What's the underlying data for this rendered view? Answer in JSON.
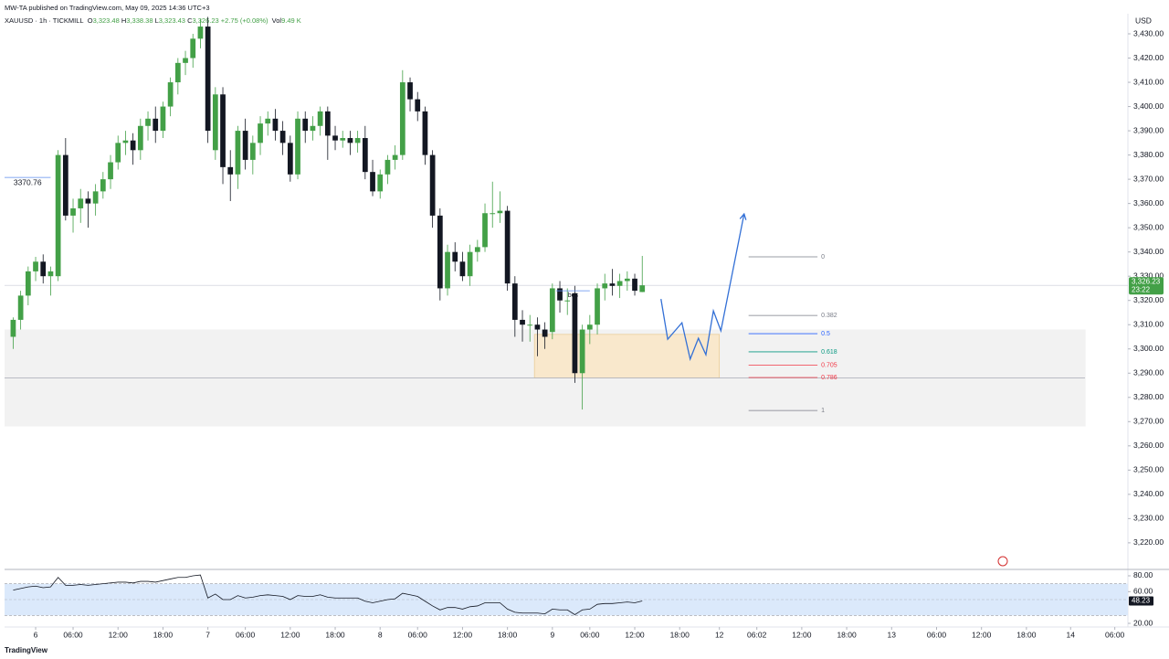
{
  "header": {
    "publisher": "MW-TA published on TradingView.com, May 09, 2025 14:36 UTC+3",
    "symbol": "XAUUSD · 1h · TICKMILL",
    "legend": [
      {
        "key": "O",
        "value": "3,323.48"
      },
      {
        "key": "H",
        "value": "3,338.38"
      },
      {
        "key": "L",
        "value": "3,323.43"
      },
      {
        "key": "C",
        "value": "3,326.23"
      }
    ],
    "change": "+2.75 (+0.08%)",
    "volume": {
      "key": "Vol",
      "value": "9.49 K"
    }
  },
  "footer": {
    "brand": "TradingView"
  },
  "chart_data": {
    "type": "candlestick",
    "currency": "USD",
    "up_color": "#43a047",
    "down_color": "#131722",
    "x": [
      -3,
      -2,
      -1,
      0,
      1,
      2,
      3,
      4,
      5,
      6,
      7,
      8,
      9,
      10,
      11,
      12,
      13,
      14,
      15,
      16,
      17,
      18,
      19,
      20,
      21,
      22,
      23,
      24,
      25,
      26,
      27,
      28,
      29,
      30,
      31,
      32,
      33,
      34,
      35,
      36,
      37,
      38,
      39,
      40,
      41,
      42,
      43,
      44,
      45,
      46,
      47,
      48,
      49,
      50,
      51,
      52,
      53,
      54,
      55,
      56,
      57,
      58,
      59,
      60,
      61,
      62,
      63,
      64,
      65,
      66,
      67,
      68,
      69,
      70,
      71,
      72,
      73,
      74,
      75,
      76,
      77,
      78,
      79,
      80,
      81
    ],
    "open": [
      3305,
      3312,
      3322,
      3332,
      3336,
      3330,
      3330,
      3380,
      3355,
      3358,
      3362,
      3360,
      3365,
      3370,
      3377,
      3385,
      3386,
      3382,
      3392,
      3395,
      3390,
      3400,
      3410,
      3418,
      3420,
      3428,
      3433,
      3382,
      3405,
      3375,
      3372,
      3390,
      3378,
      3385,
      3393,
      3395,
      3390,
      3385,
      3372,
      3395,
      3390,
      3392,
      3398,
      3388,
      3386,
      3387,
      3385,
      3387,
      3373,
      3365,
      3372,
      3378,
      3380,
      3410,
      3403,
      3398,
      3380,
      3355,
      3325,
      3340,
      3336,
      3330,
      3340,
      3342,
      3356,
      3356,
      3357,
      3327,
      3312,
      3310,
      3310,
      3308,
      3307,
      3325,
      3320,
      3323,
      3290,
      3308,
      3310,
      3325,
      3327,
      3326,
      3328,
      3329,
      3323.48
    ],
    "high": [
      3313,
      3324,
      3334,
      3338,
      3339,
      3334,
      3382,
      3387,
      3362,
      3366,
      3365,
      3368,
      3373,
      3380,
      3388,
      3390,
      3389,
      3395,
      3398,
      3400,
      3402,
      3412,
      3420,
      3423,
      3430,
      3436,
      3437,
      3408,
      3408,
      3382,
      3392,
      3395,
      3388,
      3396,
      3398,
      3399,
      3394,
      3388,
      3398,
      3398,
      3396,
      3400,
      3400,
      3392,
      3390,
      3390,
      3390,
      3392,
      3378,
      3374,
      3380,
      3384,
      3415,
      3412,
      3406,
      3400,
      3382,
      3358,
      3343,
      3344,
      3340,
      3343,
      3345,
      3360,
      3369,
      3365,
      3359,
      3330,
      3316,
      3314,
      3313,
      3311,
      3327,
      3328,
      3325,
      3326,
      3310,
      3314,
      3327,
      3331,
      3333,
      3331,
      3332,
      3331,
      3338.38
    ],
    "low": [
      3300,
      3308,
      3318,
      3328,
      3327,
      3322,
      3328,
      3353,
      3348,
      3352,
      3350,
      3355,
      3362,
      3366,
      3374,
      3380,
      3376,
      3378,
      3386,
      3385,
      3387,
      3396,
      3405,
      3413,
      3416,
      3424,
      3385,
      3378,
      3368,
      3361,
      3366,
      3374,
      3372,
      3380,
      3388,
      3386,
      3380,
      3369,
      3370,
      3385,
      3386,
      3388,
      3378,
      3382,
      3383,
      3380,
      3381,
      3370,
      3363,
      3362,
      3368,
      3374,
      3378,
      3398,
      3394,
      3376,
      3350,
      3320,
      3322,
      3332,
      3328,
      3326,
      3336,
      3340,
      3350,
      3352,
      3324,
      3305,
      3303,
      3303,
      3297,
      3300,
      3304,
      3315,
      3314,
      3286,
      3275,
      3302,
      3306,
      3320,
      3322,
      3321,
      3324,
      3322,
      3323.43
    ],
    "close": [
      3312,
      3322,
      3332,
      3336,
      3330,
      3332,
      3380,
      3355,
      3358,
      3362,
      3360,
      3365,
      3370,
      3377,
      3385,
      3386,
      3382,
      3392,
      3395,
      3390,
      3400,
      3410,
      3418,
      3420,
      3428,
      3433,
      3390,
      3405,
      3375,
      3372,
      3390,
      3378,
      3385,
      3393,
      3395,
      3390,
      3385,
      3372,
      3395,
      3390,
      3392,
      3398,
      3388,
      3386,
      3387,
      3385,
      3387,
      3373,
      3365,
      3372,
      3378,
      3380,
      3410,
      3403,
      3398,
      3380,
      3355,
      3325,
      3340,
      3336,
      3330,
      3340,
      3342,
      3356,
      3356,
      3357,
      3327,
      3312,
      3310,
      3310,
      3308,
      3305,
      3325,
      3320,
      3320,
      3290,
      3308,
      3310,
      3325,
      3327,
      3326,
      3328,
      3329,
      3324,
      3326.23
    ],
    "xlim": [
      -4.15,
      145.85
    ],
    "xticks": [
      {
        "value": 0,
        "label": "6"
      },
      {
        "value": 5,
        "label": "06:00"
      },
      {
        "value": 11,
        "label": "12:00"
      },
      {
        "value": 17,
        "label": "18:00"
      },
      {
        "value": 23,
        "label": "7"
      },
      {
        "value": 28,
        "label": "06:00"
      },
      {
        "value": 34,
        "label": "12:00"
      },
      {
        "value": 40,
        "label": "18:00"
      },
      {
        "value": 46,
        "label": "8"
      },
      {
        "value": 51,
        "label": "06:00"
      },
      {
        "value": 57,
        "label": "12:00"
      },
      {
        "value": 63,
        "label": "18:00"
      },
      {
        "value": 69,
        "label": "9"
      },
      {
        "value": 74,
        "label": "06:00"
      },
      {
        "value": 80,
        "label": "12:00"
      },
      {
        "value": 86,
        "label": "18:00"
      },
      {
        "value": 91.3,
        "label": "12"
      },
      {
        "value": 96.3,
        "label": "06:02"
      },
      {
        "value": 102.3,
        "label": "12:00"
      },
      {
        "value": 108.3,
        "label": "18:00"
      },
      {
        "value": 114.3,
        "label": "13"
      },
      {
        "value": 120.3,
        "label": "06:00"
      },
      {
        "value": 126.3,
        "label": "12:00"
      },
      {
        "value": 132.3,
        "label": "18:00"
      },
      {
        "value": 138.2,
        "label": "14"
      },
      {
        "value": 144.1,
        "label": "06:00"
      }
    ],
    "ylim": [
      3209.4,
      3438.3
    ],
    "yticks": [
      {
        "value": 3220,
        "label": "3,220.00"
      },
      {
        "value": 3230,
        "label": "3,230.00"
      },
      {
        "value": 3240,
        "label": "3,240.00"
      },
      {
        "value": 3250,
        "label": "3,250.00"
      },
      {
        "value": 3260,
        "label": "3,260.00"
      },
      {
        "value": 3270,
        "label": "3,270.00"
      },
      {
        "value": 3280,
        "label": "3,280.00"
      },
      {
        "value": 3290,
        "label": "3,290.00"
      },
      {
        "value": 3300,
        "label": "3,300.00"
      },
      {
        "value": 3310,
        "label": "3,310.00"
      },
      {
        "value": 3320,
        "label": "3,320.00"
      },
      {
        "value": 3330,
        "label": "3,330.00"
      },
      {
        "value": 3340,
        "label": "3,340.00"
      },
      {
        "value": 3350,
        "label": "3,350.00"
      },
      {
        "value": 3360,
        "label": "3,360.00"
      },
      {
        "value": 3370,
        "label": "3,370.00"
      },
      {
        "value": 3380,
        "label": "3,380.00"
      },
      {
        "value": 3390,
        "label": "3,390.00"
      },
      {
        "value": 3400,
        "label": "3,400.00"
      },
      {
        "value": 3410,
        "label": "3,410.00"
      },
      {
        "value": 3420,
        "label": "3,420.00"
      },
      {
        "value": 3430,
        "label": "3,430.00"
      }
    ],
    "price_tag": {
      "value": 3326.23,
      "label": "3,326.23",
      "countdown": "23:22",
      "color": "#43a047"
    },
    "level_label": {
      "value": 3370.76,
      "label": "3370.76",
      "x": [
        -4.15,
        2
      ]
    },
    "annotation": {
      "text": "bos",
      "x": [
        69.5,
        74
      ],
      "price": 3324
    },
    "zones": [
      {
        "x": [
          -4.15,
          140.2
        ],
        "top": 3308,
        "bottom": 3268,
        "color": "#f2f2f2"
      },
      {
        "x": [
          66.6,
          91.3
        ],
        "top": 3306,
        "bottom": 3288,
        "color": "#f9e8cc"
      }
    ],
    "support_line": 3288,
    "fib": {
      "ratios": [
        0,
        0.382,
        0.5,
        0.618,
        0.705,
        0.786,
        1
      ],
      "prices": [
        3338,
        3313.8,
        3306.3,
        3298.8,
        3293.3,
        3288.2,
        3274.6
      ],
      "colors": [
        "#787b86",
        "#787b86",
        "#2962ff",
        "#089981",
        "#f23645",
        "#f23645",
        "#787b86"
      ],
      "x": [
        95.2,
        104.4
      ]
    },
    "projection": {
      "x": [
        83.5,
        84.4,
        86.3,
        87.4,
        88.5,
        89.5,
        90.5,
        91.5,
        94.6
      ],
      "prices": [
        3320.6,
        3304,
        3310.8,
        3295.8,
        3304.4,
        3297.6,
        3315.7,
        3307.5,
        3355.7
      ],
      "color": "#3370d6"
    },
    "rsi": {
      "values": [
        62,
        64,
        66,
        67,
        65,
        66,
        78,
        68,
        68,
        69,
        68,
        69,
        70,
        71,
        72,
        72,
        71,
        73,
        73,
        72,
        74,
        76,
        78,
        78,
        80,
        81,
        52,
        57,
        50,
        50,
        55,
        52,
        53,
        55,
        56,
        55,
        54,
        50,
        55,
        54,
        54,
        56,
        53,
        52,
        52,
        52,
        52,
        48,
        46,
        48,
        50,
        51,
        58,
        56,
        54,
        48,
        42,
        37,
        40,
        40,
        38,
        41,
        42,
        46,
        46,
        46,
        38,
        34,
        33,
        33,
        33,
        32,
        38,
        37,
        37,
        31,
        37,
        38,
        44,
        45,
        45,
        46,
        47,
        46,
        48.23
      ],
      "color": "#131722",
      "ylim": [
        15.4,
        86.9
      ],
      "yticks": [
        {
          "value": 80,
          "label": "80.00"
        },
        {
          "value": 60,
          "label": "60.00"
        },
        {
          "value": 20,
          "label": "20.00"
        }
      ],
      "bands": [
        70,
        30
      ],
      "midline": 50,
      "tag": "48.23"
    }
  }
}
